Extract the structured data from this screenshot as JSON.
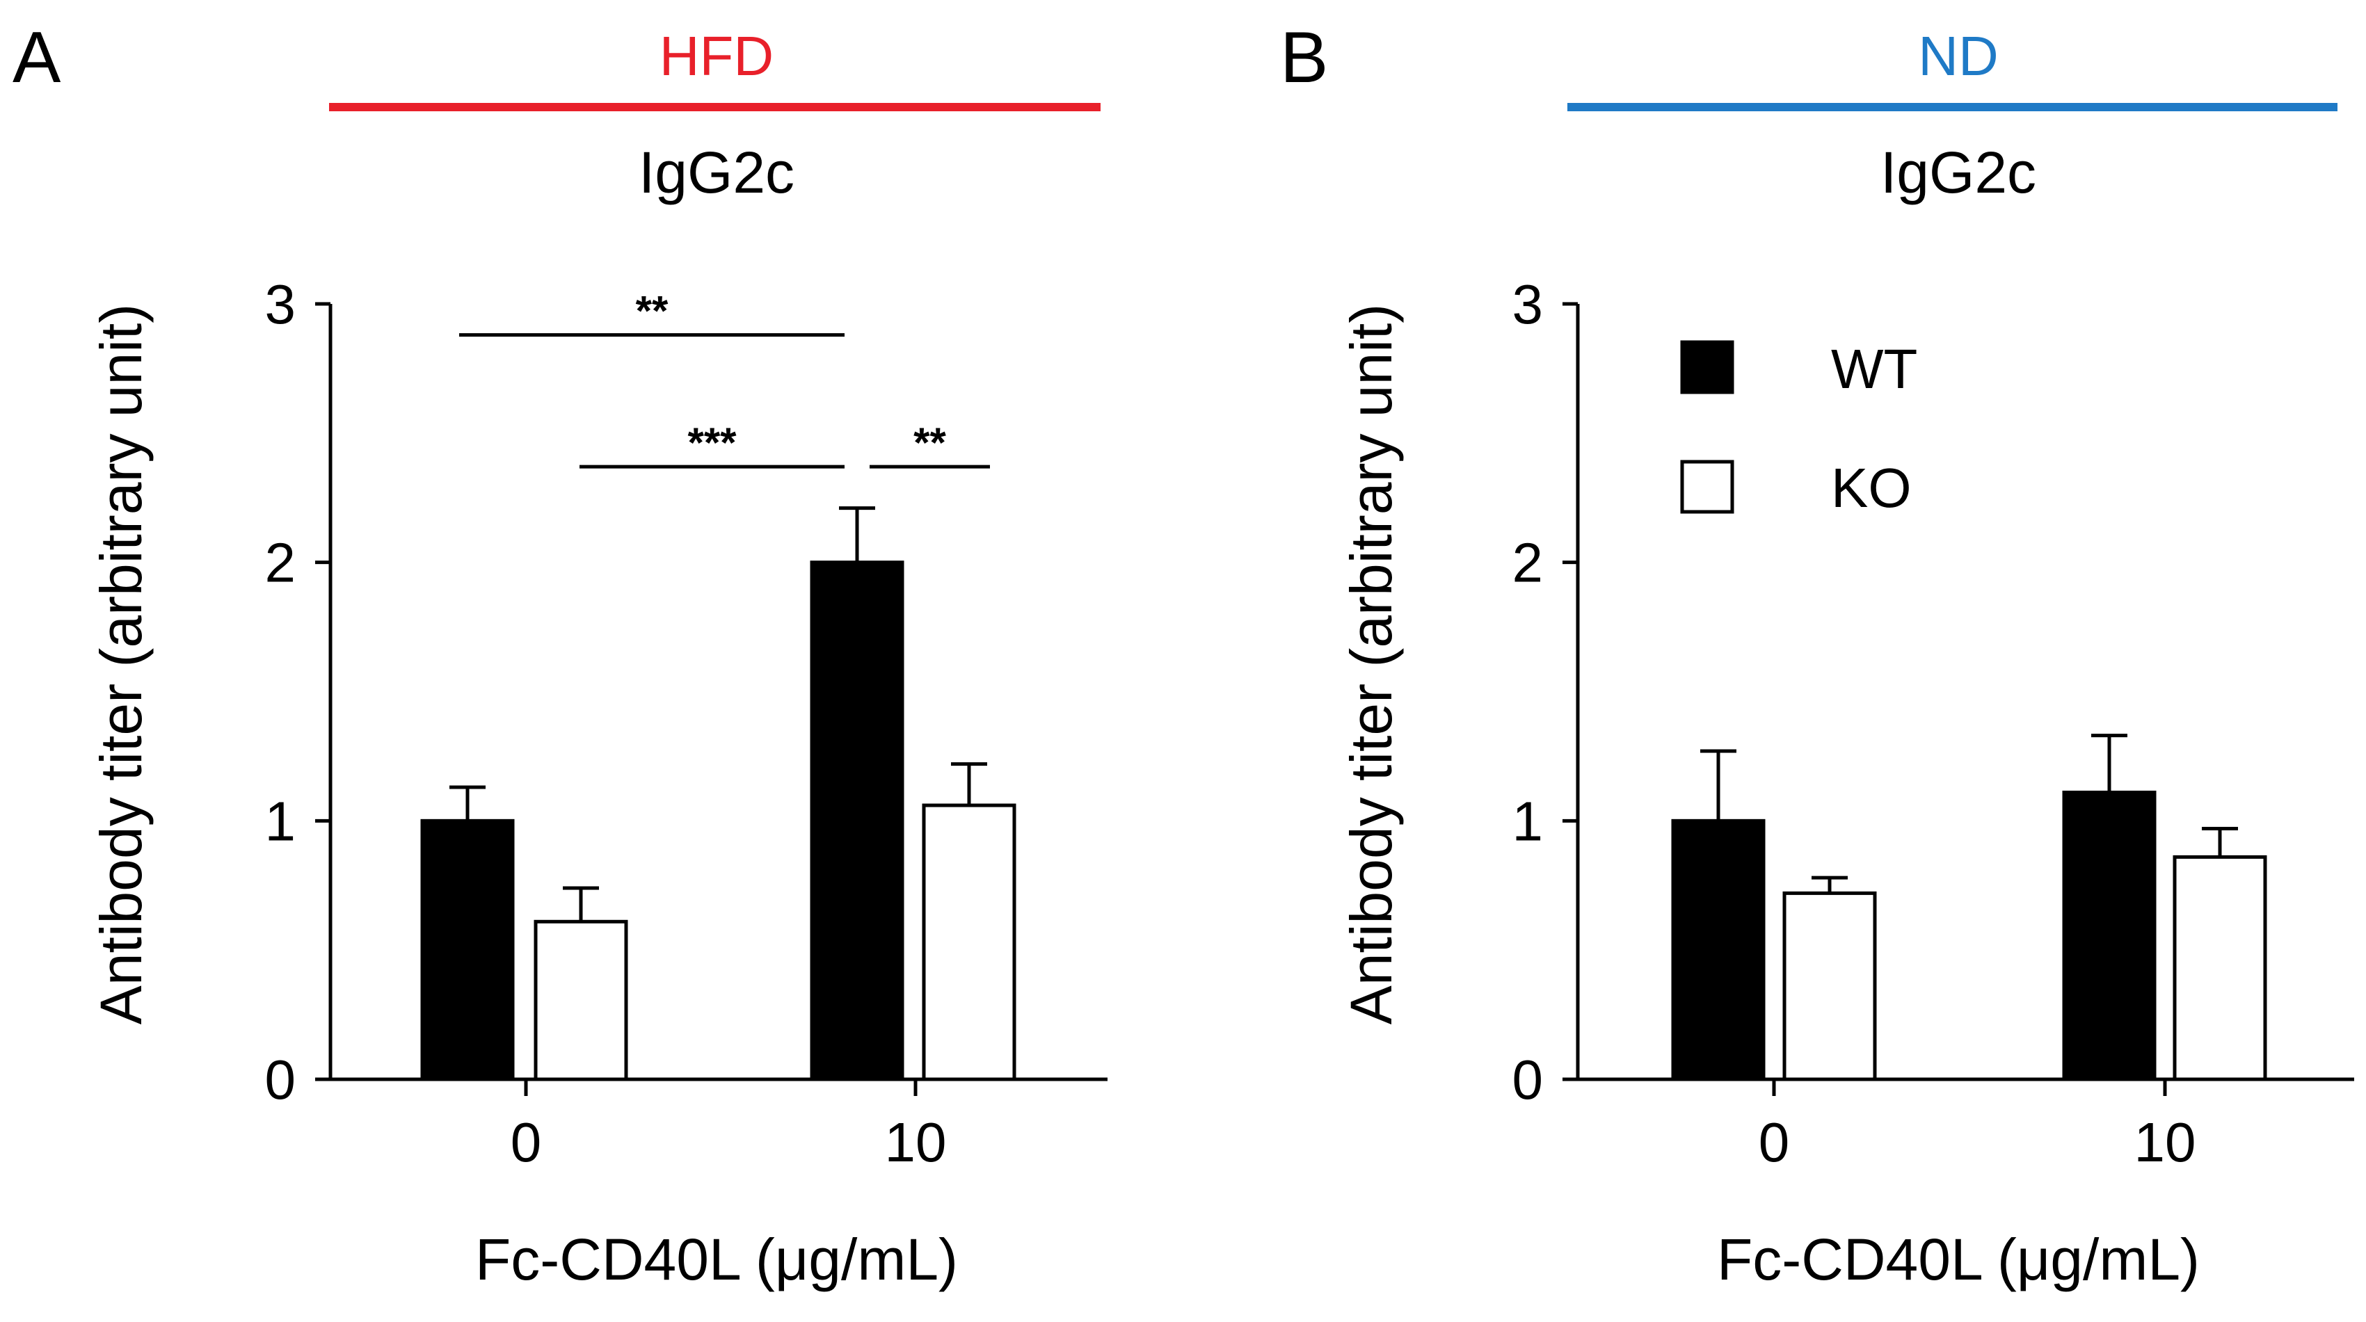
{
  "colors": {
    "hfd": "#e8202a",
    "nd": "#1f7ac6",
    "wt": "#000000",
    "ko": "#ffffff"
  },
  "legend": [
    {
      "name": "WT",
      "fill": "#000000"
    },
    {
      "name": "KO",
      "fill": "#ffffff"
    }
  ],
  "chart_data": [
    {
      "type": "bar",
      "panel": "A",
      "diet": "HFD",
      "title": "IgG2c",
      "xlabel": "Fc-CD40L (μg/mL)",
      "ylabel": "Antibody titer (arbitrary unit)",
      "ylim": [
        0,
        3
      ],
      "yticks": [
        "0",
        "1",
        "2",
        "3"
      ],
      "categories": [
        "0",
        "10"
      ],
      "series": [
        {
          "name": "WT",
          "values": [
            1.0,
            2.0
          ],
          "errors": [
            0.13,
            0.21
          ]
        },
        {
          "name": "KO",
          "values": [
            0.61,
            1.06
          ],
          "errors": [
            0.13,
            0.16
          ]
        }
      ],
      "significance": [
        {
          "label": "**",
          "from": "0:WT",
          "to": "10:WT",
          "y": 2.88
        },
        {
          "label": "***",
          "from": "0:KO",
          "to": "10:WT",
          "y": 2.37
        },
        {
          "label": "**",
          "from": "10:WT",
          "to": "10:KO",
          "y": 2.37
        }
      ]
    },
    {
      "type": "bar",
      "panel": "B",
      "diet": "ND",
      "title": "IgG2c",
      "xlabel": "Fc-CD40L (μg/mL)",
      "ylabel": "Antibody titer (arbitrary unit)",
      "ylim": [
        0,
        3
      ],
      "yticks": [
        "0",
        "1",
        "2",
        "3"
      ],
      "categories": [
        "0",
        "10"
      ],
      "series": [
        {
          "name": "WT",
          "values": [
            1.0,
            1.11
          ],
          "errors": [
            0.27,
            0.22
          ]
        },
        {
          "name": "KO",
          "values": [
            0.72,
            0.86
          ],
          "errors": [
            0.06,
            0.11
          ]
        }
      ],
      "significance": []
    }
  ]
}
